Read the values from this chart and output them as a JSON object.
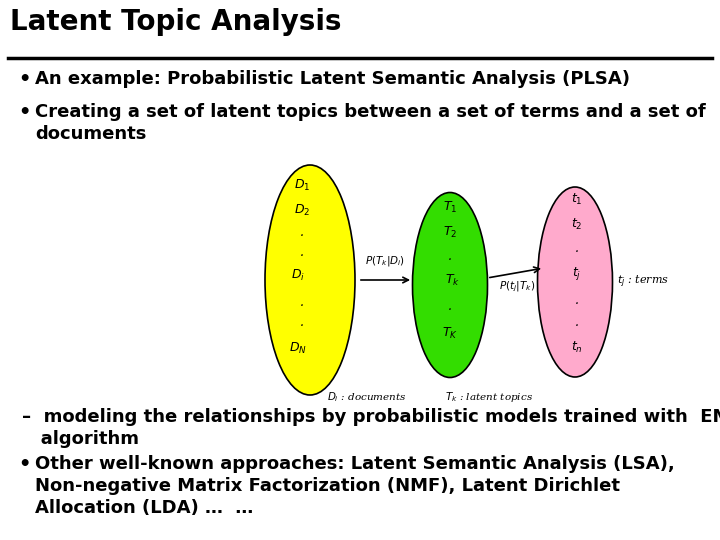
{
  "title": "Latent Topic Analysis",
  "background_color": "#ffffff",
  "title_color": "#000000",
  "title_fontsize": 20,
  "bullet_fontsize": 13,
  "bullet1": "An example: Probabilistic Latent Semantic Analysis (PLSA)",
  "bullet2a": "Creating a set of latent topics between a set of terms and a set of",
  "bullet2b": "documents",
  "sub_bullet": "–  modeling the relationships by probabilistic models trained with  EM",
  "sub_bullet2": "   algorithm",
  "bullet3a": "Other well-known approaches: Latent Semantic Analysis (LSA),",
  "bullet3b": "Non-negative Matrix Factorization (NMF), Latent Dirichlet",
  "bullet3c": "Allocation (LDA) …  …",
  "ellipse_yellow_color": "#ffff00",
  "ellipse_green_color": "#33dd00",
  "ellipse_pink_color": "#ffaacc",
  "line_color": "#000000"
}
